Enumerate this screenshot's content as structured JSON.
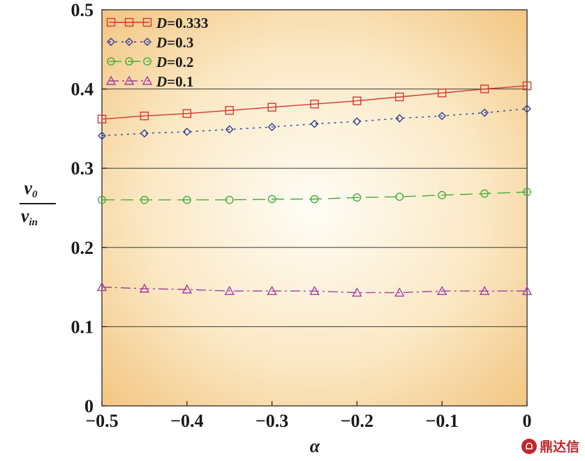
{
  "chart_data": {
    "type": "line",
    "xlabel": "α",
    "ylabel": {
      "numerator": "v",
      "numerator_sub": "0",
      "denominator": "v",
      "denominator_sub": "in"
    },
    "xlim": [
      -0.5,
      0
    ],
    "ylim": [
      0,
      0.5
    ],
    "x_ticks": [
      "−0.5",
      "−0.4",
      "−0.3",
      "−0.2",
      "−0.1",
      "0"
    ],
    "y_ticks": [
      "0",
      "0.1",
      "0.2",
      "0.3",
      "0.4",
      "0.5"
    ],
    "grid": "horizontal",
    "legend_position": "top-left",
    "x": [
      -0.5,
      -0.45,
      -0.4,
      -0.35,
      -0.3,
      -0.25,
      -0.2,
      -0.15,
      -0.1,
      -0.05,
      0
    ],
    "series": [
      {
        "name": "D=0.333",
        "label_var": "D",
        "label_value": "=0.333",
        "color": "#d8362f",
        "marker": "square",
        "dash": "",
        "values": [
          0.362,
          0.366,
          0.369,
          0.373,
          0.377,
          0.381,
          0.385,
          0.39,
          0.395,
          0.4,
          0.404
        ]
      },
      {
        "name": "D=0.3",
        "label_var": "D",
        "label_value": "=0.3",
        "color": "#2c3c9a",
        "marker": "diamond",
        "dash": "3,6",
        "values": [
          0.341,
          0.344,
          0.346,
          0.349,
          0.352,
          0.356,
          0.359,
          0.363,
          0.366,
          0.37,
          0.375
        ]
      },
      {
        "name": "D=0.2",
        "label_var": "D",
        "label_value": "=0.2",
        "color": "#3fae39",
        "marker": "circle",
        "dash": "18,9",
        "values": [
          0.26,
          0.26,
          0.26,
          0.26,
          0.261,
          0.261,
          0.263,
          0.264,
          0.266,
          0.268,
          0.27
        ]
      },
      {
        "name": "D=0.1",
        "label_var": "D",
        "label_value": "=0.1",
        "color": "#a63c9f",
        "marker": "triangle",
        "dash": "14,5,3,5",
        "values": [
          0.15,
          0.148,
          0.147,
          0.145,
          0.145,
          0.145,
          0.143,
          0.143,
          0.145,
          0.145,
          0.145
        ]
      }
    ]
  },
  "watermark": {
    "text": "鼎达信",
    "logo_text": "ᗝ"
  },
  "colors": {
    "bg_outer": "#f4c987",
    "bg_inner": "#fffcf4",
    "grid": "#3a3a3a"
  }
}
